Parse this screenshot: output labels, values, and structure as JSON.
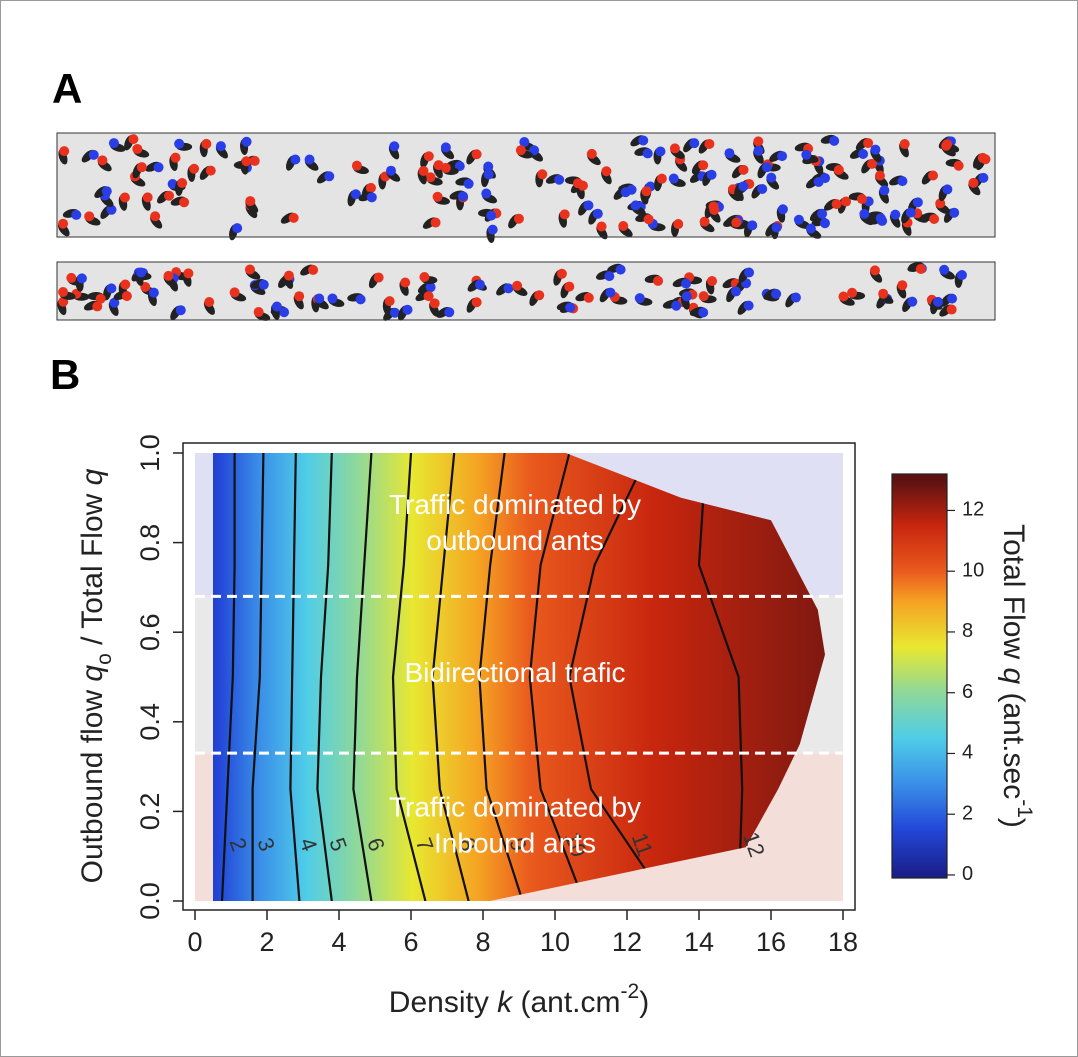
{
  "panel_a": {
    "label": "A"
  },
  "chart_data": {
    "type": "contour",
    "panel_label": "B",
    "xlabel": [
      {
        "text": "Density "
      },
      {
        "text": "k",
        "style": "italic"
      },
      {
        "text": " (ant.cm"
      },
      {
        "text": "-2",
        "style": "sup"
      },
      {
        "text": ")"
      }
    ],
    "ylabel": [
      {
        "text": "Outbound flow "
      },
      {
        "text": "q",
        "style": "italic"
      },
      {
        "text": "o",
        "style": "sub"
      },
      {
        "text": " / Total Flow "
      },
      {
        "text": "q",
        "style": "italic"
      }
    ],
    "colorbar_label": [
      {
        "text": "Total Flow "
      },
      {
        "text": "q",
        "style": "italic"
      },
      {
        "text": " (ant.sec"
      },
      {
        "text": "-1",
        "style": "sup"
      },
      {
        "text": ")"
      }
    ],
    "xlim": [
      0,
      18
    ],
    "xticks": [
      0,
      2,
      4,
      6,
      8,
      10,
      12,
      14,
      16,
      18
    ],
    "ylim": [
      0,
      1
    ],
    "yticks": [
      {
        "value": 0,
        "label": "0.0"
      },
      {
        "value": 0.2,
        "label": "0.2"
      },
      {
        "value": 0.4,
        "label": "0.4"
      },
      {
        "value": 0.6,
        "label": "0.6"
      },
      {
        "value": 0.8,
        "label": "0.8"
      },
      {
        "value": 1,
        "label": "1.0"
      }
    ],
    "zlim": [
      -0.1,
      13.2
    ],
    "zticks": [
      0,
      2,
      4,
      6,
      8,
      10,
      12
    ],
    "colormap": [
      {
        "z": 0,
        "color": "#1a1f8a"
      },
      {
        "z": 1.5,
        "color": "#2347d8"
      },
      {
        "z": 3,
        "color": "#3a8fe8"
      },
      {
        "z": 4.5,
        "color": "#4fcde8"
      },
      {
        "z": 6,
        "color": "#8ed89a"
      },
      {
        "z": 7.5,
        "color": "#e8e830"
      },
      {
        "z": 9,
        "color": "#f5a223"
      },
      {
        "z": 10,
        "color": "#ea5a1e"
      },
      {
        "z": 11.5,
        "color": "#c8260e"
      },
      {
        "z": 13,
        "color": "#5c1212"
      }
    ],
    "surface_extent": [
      [
        0.5,
        1.0
      ],
      [
        10.3,
        1.0
      ],
      [
        13.5,
        0.9
      ],
      [
        16.0,
        0.85
      ],
      [
        17.3,
        0.65
      ],
      [
        17.5,
        0.55
      ],
      [
        16.8,
        0.35
      ],
      [
        16.2,
        0.25
      ],
      [
        15.3,
        0.12
      ],
      [
        8.2,
        0.0
      ],
      [
        0.5,
        0.0
      ]
    ],
    "contour_q": [
      1.0,
      0.75,
      0.5,
      0.25,
      0.0
    ],
    "contours": [
      {
        "level": 2,
        "k": [
          1.1,
          1.1,
          1.05,
          0.9,
          0.75
        ]
      },
      {
        "level": 3,
        "k": [
          1.9,
          1.85,
          1.8,
          1.6,
          1.6
        ]
      },
      {
        "level": 4,
        "k": [
          2.8,
          2.75,
          2.7,
          2.65,
          2.9
        ]
      },
      {
        "level": 5,
        "k": [
          3.8,
          3.7,
          3.5,
          3.4,
          3.8
        ]
      },
      {
        "level": 6,
        "k": [
          4.9,
          4.7,
          4.5,
          4.4,
          4.9
        ]
      },
      {
        "level": 7,
        "k": [
          6.0,
          5.8,
          5.5,
          5.6,
          6.4
        ]
      },
      {
        "level": 8,
        "k": [
          7.2,
          6.9,
          6.6,
          6.8,
          7.6
        ]
      },
      {
        "level": 9,
        "k": [
          8.6,
          8.2,
          7.9,
          8.1,
          9.1
        ]
      },
      {
        "level": 10,
        "k": [
          10.4,
          9.6,
          9.3,
          9.6,
          10.8
        ]
      },
      {
        "level": 11,
        "k": [
          12.6,
          11.1,
          10.4,
          11.0,
          13.1
        ]
      },
      {
        "level": 12,
        "k": [
          14.2,
          14.0,
          15.1,
          15.2,
          15.1
        ]
      }
    ],
    "regions": [
      {
        "lines": [
          "Traffic dominated by",
          "outbound ants"
        ],
        "q_range": [
          0.68,
          1.0
        ],
        "color": "#dfe0f3"
      },
      {
        "lines": [
          "Bidirectional trafic"
        ],
        "q_range": [
          0.33,
          0.68
        ],
        "color": "#e9e9e9"
      },
      {
        "lines": [
          "Traffic dominated by",
          "Inbound ants"
        ],
        "q_range": [
          0.0,
          0.33
        ],
        "color": "#f3ded9"
      }
    ],
    "boundary_color": "#ffffff"
  }
}
